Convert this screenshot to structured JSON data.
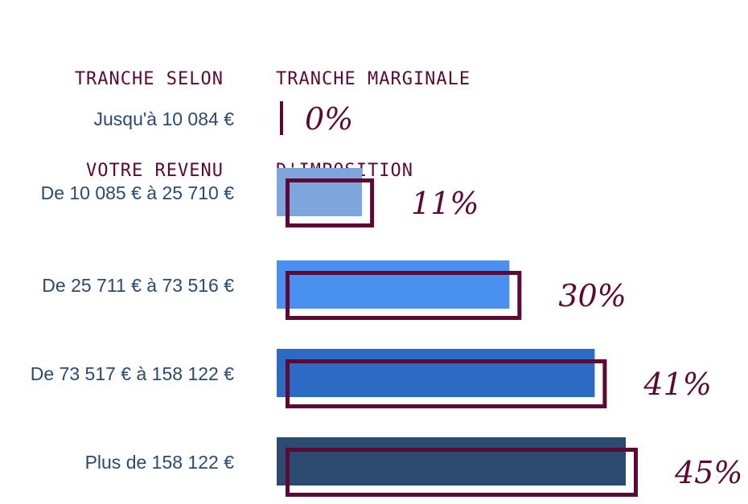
{
  "header": {
    "left_line1": "TRANCHE SELON",
    "left_line2": "VOTRE REVENU",
    "right_line1": "TRANCHE MARGINALE",
    "right_line2": "D'IMPOSITION"
  },
  "chart_data": {
    "type": "bar",
    "orientation": "horizontal",
    "categories": [
      "Jusqu'à 10 084 €",
      "De 10 085 € à  25 710 €",
      "De  25 711 € à 73 516 €",
      "De 73 517 € à 158 122 €",
      "Plus de 158 122 €"
    ],
    "values": [
      0,
      11,
      30,
      41,
      45
    ],
    "value_labels": [
      "0%",
      "11%",
      "30%",
      "41%",
      "45%"
    ],
    "unit": "%",
    "xlim": [
      0,
      45
    ],
    "bar_colors": [
      "#5c0a34",
      "#7fa6dc",
      "#4a90f0",
      "#2b6bc4",
      "#2b4a6f"
    ],
    "outline_color": "#5c0a34",
    "grid": false,
    "legend": "none"
  }
}
